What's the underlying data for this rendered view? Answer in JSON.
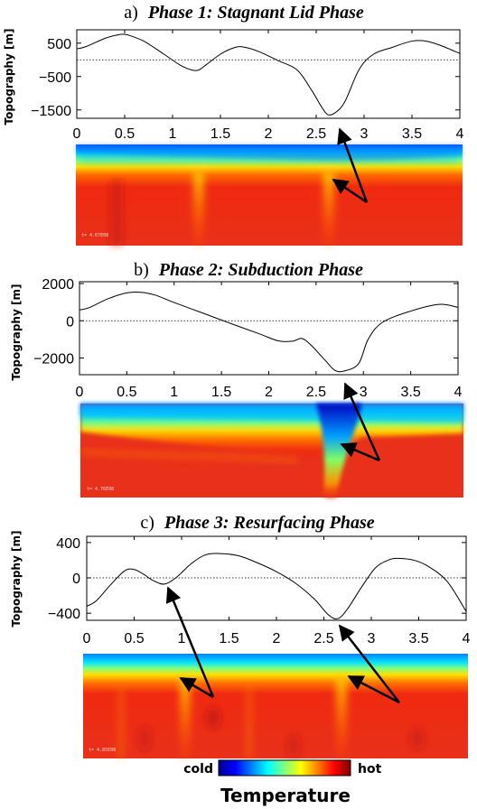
{
  "chart_data": [
    {
      "type": "line",
      "panel_letter": "a)",
      "title": "Phase 1: Stagnant Lid Phase",
      "ylabel": "Topography [m]",
      "xlim": [
        0,
        4
      ],
      "ylim": [
        -1750,
        900
      ],
      "xticks": [
        "0",
        "0.5",
        "1",
        "1.5",
        "2",
        "2.5",
        "3",
        "3.5",
        "4"
      ],
      "yticks": [
        {
          "v": 500,
          "label": "500"
        },
        {
          "v": -500,
          "label": "−500"
        },
        {
          "v": -1500,
          "label": "−1500"
        }
      ],
      "zero_line": "dotted",
      "series": [
        {
          "x": [
            0,
            0.1,
            0.3,
            0.45,
            0.5,
            0.55,
            0.7,
            0.9,
            1.1,
            1.25,
            1.35,
            1.5,
            1.65,
            1.75,
            1.9,
            2.1,
            2.3,
            2.45,
            2.55,
            2.62,
            2.7,
            2.8,
            2.95,
            3.1,
            3.3,
            3.5,
            3.65,
            3.8,
            4.0
          ],
          "y": [
            330,
            400,
            650,
            760,
            760,
            730,
            560,
            190,
            -190,
            -320,
            -150,
            170,
            370,
            380,
            250,
            -20,
            -300,
            -900,
            -1380,
            -1640,
            -1580,
            -1250,
            -280,
            170,
            380,
            560,
            560,
            430,
            190
          ]
        }
      ],
      "arrows": 3,
      "colormap_panel": {
        "cold_band": "top",
        "plumes_at_x": [
          0.15,
          1.3,
          2.7
        ]
      }
    },
    {
      "type": "line",
      "panel_letter": "b)",
      "title": "Phase 2: Subduction Phase",
      "ylabel": "Topography [m]",
      "xlim": [
        0,
        4
      ],
      "ylim": [
        -2900,
        2100
      ],
      "xticks": [
        "0",
        "0.5",
        "1",
        "1.5",
        "2",
        "2.5",
        "3",
        "3.5",
        "4"
      ],
      "yticks": [
        {
          "v": 2000,
          "label": "2000"
        },
        {
          "v": 0,
          "label": "0"
        },
        {
          "v": -2000,
          "label": "−2000"
        }
      ],
      "zero_line": "dotted",
      "series": [
        {
          "x": [
            0,
            0.1,
            0.3,
            0.5,
            0.65,
            0.8,
            1.0,
            1.3,
            1.6,
            1.9,
            2.1,
            2.25,
            2.35,
            2.45,
            2.6,
            2.7,
            2.8,
            2.95,
            3.05,
            3.2,
            3.5,
            3.8,
            4.0
          ],
          "y": [
            580,
            700,
            1180,
            1500,
            1530,
            1380,
            980,
            420,
            -150,
            -700,
            -1080,
            -1100,
            -950,
            -1330,
            -2150,
            -2670,
            -2700,
            -2300,
            -1000,
            -90,
            520,
            880,
            720
          ]
        }
      ],
      "arrows": 2,
      "colormap_panel": {
        "cold_band": "top",
        "subducting_slab_at_x": 2.7
      }
    },
    {
      "type": "line",
      "panel_letter": "c)",
      "title": "Phase 3: Resurfacing Phase",
      "ylabel": "Topography [m]",
      "xlim": [
        0,
        4
      ],
      "ylim": [
        -480,
        470
      ],
      "xticks": [
        "0",
        "0.5",
        "1",
        "1.5",
        "2",
        "2.5",
        "3",
        "3.5",
        "4"
      ],
      "yticks": [
        {
          "v": 400,
          "label": "400"
        },
        {
          "v": 0,
          "label": "0"
        },
        {
          "v": -400,
          "label": "−400"
        }
      ],
      "zero_line": "dotted",
      "series": [
        {
          "x": [
            0,
            0.1,
            0.25,
            0.4,
            0.5,
            0.6,
            0.7,
            0.82,
            0.95,
            1.1,
            1.25,
            1.4,
            1.6,
            1.8,
            2.0,
            2.2,
            2.4,
            2.55,
            2.65,
            2.75,
            2.9,
            3.05,
            3.2,
            3.3,
            3.45,
            3.6,
            3.8,
            4.0
          ],
          "y": [
            -320,
            -260,
            -80,
            80,
            95,
            40,
            -30,
            -70,
            10,
            160,
            260,
            275,
            250,
            170,
            70,
            -60,
            -240,
            -420,
            -460,
            -350,
            -100,
            120,
            210,
            220,
            200,
            130,
            -40,
            -380
          ]
        }
      ],
      "arrows": 2,
      "colormap_panel": {
        "cold_band": "top",
        "upwellings_at_x": [
          0.95,
          2.85
        ]
      }
    }
  ],
  "colorbar": {
    "low_label": "cold",
    "high_label": "hot",
    "title": "Temperature",
    "colors": [
      "#00008f",
      "#0000ff",
      "#0080ff",
      "#00ffff",
      "#80ff80",
      "#ffff00",
      "#ff8000",
      "#ff0000",
      "#800000"
    ]
  }
}
